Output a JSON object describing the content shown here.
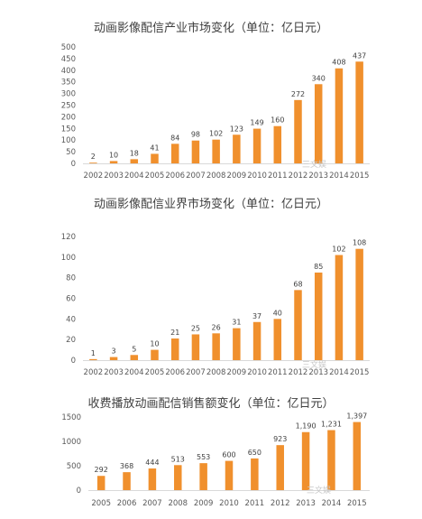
{
  "watermark": "三文娱",
  "chart_data": [
    {
      "type": "bar",
      "title": "动画影像配信产业市场变化（单位：亿日元）",
      "xlabel": "",
      "ylabel": "",
      "categories": [
        "2002",
        "2003",
        "2004",
        "2005",
        "2006",
        "2007",
        "2008",
        "2009",
        "2010",
        "2011",
        "2012",
        "2013",
        "2014",
        "2015"
      ],
      "values": [
        2,
        10,
        18,
        41,
        84,
        98,
        102,
        123,
        149,
        160,
        272,
        340,
        408,
        437
      ],
      "value_labels": [
        "2",
        "10",
        "18",
        "41",
        "84",
        "98",
        "102",
        "123",
        "149",
        "160",
        "272",
        "340",
        "408",
        "437"
      ],
      "ylim": [
        0,
        500
      ],
      "yticks": [
        0,
        50,
        100,
        150,
        200,
        250,
        300,
        350,
        400,
        450,
        500
      ],
      "grid": false,
      "color": "#F0902D"
    },
    {
      "type": "bar",
      "title": "动画影像配信业界市场变化（单位：亿日元）",
      "xlabel": "",
      "ylabel": "",
      "categories": [
        "2002",
        "2003",
        "2004",
        "2005",
        "2006",
        "2007",
        "2008",
        "2009",
        "2010",
        "2011",
        "2012",
        "2013",
        "2014",
        "2015"
      ],
      "values": [
        1,
        3,
        5,
        10,
        21,
        25,
        26,
        31,
        37,
        40,
        68,
        85,
        102,
        108
      ],
      "value_labels": [
        "1",
        "3",
        "5",
        "10",
        "21",
        "25",
        "26",
        "31",
        "37",
        "40",
        "68",
        "85",
        "102",
        "108"
      ],
      "ylim": [
        0,
        120
      ],
      "yticks": [
        0,
        20,
        40,
        60,
        80,
        100,
        120
      ],
      "grid": false,
      "color": "#F0902D"
    },
    {
      "type": "bar",
      "title": "收费播放动画配信销售额变化（单位：亿日元）",
      "xlabel": "",
      "ylabel": "",
      "categories": [
        "2005",
        "2006",
        "2007",
        "2008",
        "2009",
        "2010",
        "2011",
        "2012",
        "2013",
        "2014",
        "2015"
      ],
      "values": [
        292,
        368,
        444,
        513,
        553,
        600,
        650,
        923,
        1190,
        1231,
        1397
      ],
      "value_labels": [
        "292",
        "368",
        "444",
        "513",
        "553",
        "600",
        "650",
        "923",
        "1,190",
        "1,231",
        "1,397"
      ],
      "ylim": [
        0,
        1500
      ],
      "yticks": [
        0,
        500,
        1000,
        1500
      ],
      "grid": false,
      "color": "#F0902D"
    }
  ]
}
